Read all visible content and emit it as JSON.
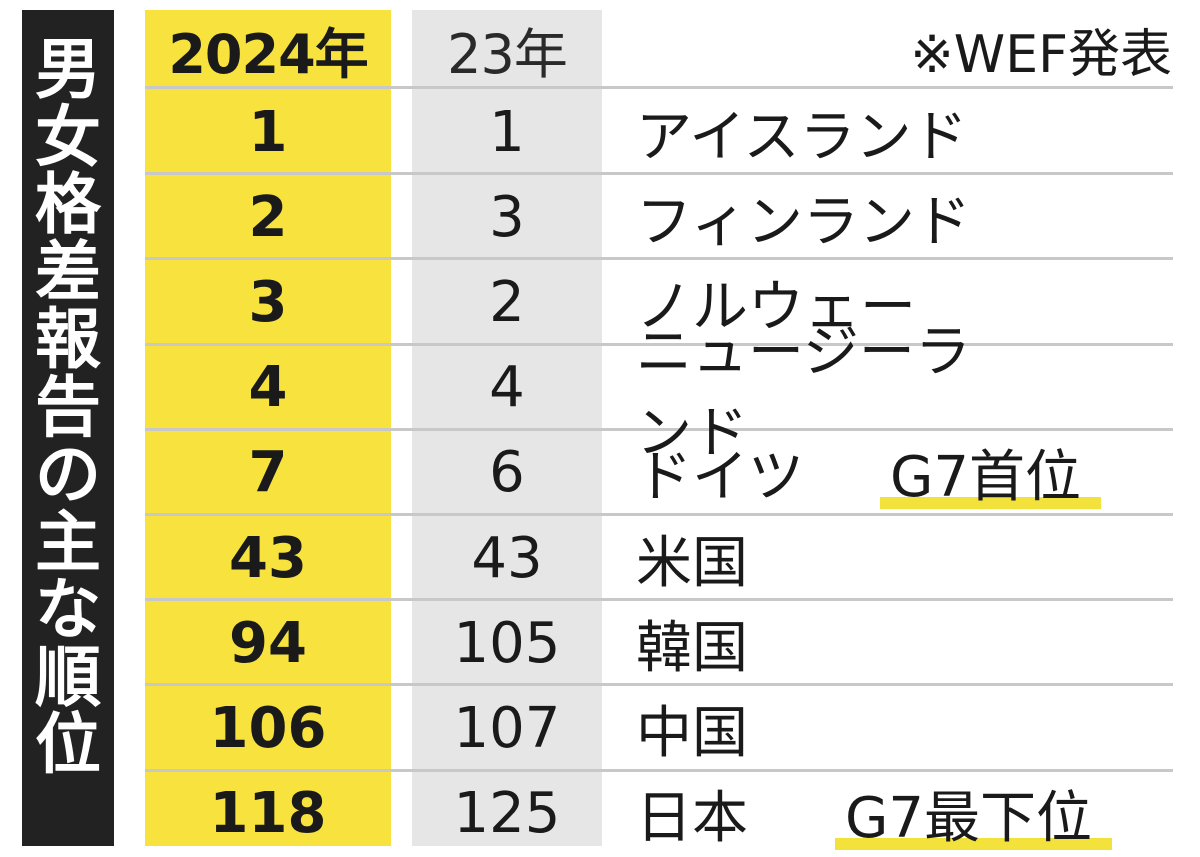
{
  "title_chars": [
    "男",
    "女",
    "格",
    "差",
    "報",
    "告",
    "の",
    "主",
    "な",
    "順",
    "位"
  ],
  "headers": {
    "year_2024": "2024年",
    "year_23": "23年",
    "source": "※WEF発表"
  },
  "colors": {
    "title_bg": "#222222",
    "col_2024_bg": "#f7e23e",
    "col_23_bg": "#e6e6e6",
    "highlight": "#f3e13c",
    "row_line": "#c8c8c8"
  },
  "rows": [
    {
      "rank_2024": "1",
      "rank_23": "1",
      "country": "アイスランド",
      "note": ""
    },
    {
      "rank_2024": "2",
      "rank_23": "3",
      "country": "フィンランド",
      "note": ""
    },
    {
      "rank_2024": "3",
      "rank_23": "2",
      "country": "ノルウェー",
      "note": ""
    },
    {
      "rank_2024": "4",
      "rank_23": "4",
      "country": "ニュージーランド",
      "note": ""
    },
    {
      "rank_2024": "7",
      "rank_23": "6",
      "country": "ドイツ",
      "note": "G7首位"
    },
    {
      "rank_2024": "43",
      "rank_23": "43",
      "country": "米国",
      "note": ""
    },
    {
      "rank_2024": "94",
      "rank_23": "105",
      "country": "韓国",
      "note": ""
    },
    {
      "rank_2024": "106",
      "rank_23": "107",
      "country": "中国",
      "note": ""
    },
    {
      "rank_2024": "118",
      "rank_23": "125",
      "country": "日本",
      "note": "G7最下位"
    }
  ],
  "chart_data": {
    "type": "table",
    "title": "男女格差報告の主な順位",
    "columns": [
      "2024年",
      "23年",
      ""
    ],
    "source_note": "※WEF発表",
    "rows": [
      [
        "1",
        "1",
        "アイスランド"
      ],
      [
        "2",
        "3",
        "フィンランド"
      ],
      [
        "3",
        "2",
        "ノルウェー"
      ],
      [
        "4",
        "4",
        "ニュージーランド"
      ],
      [
        "7",
        "6",
        "ドイツ G7首位"
      ],
      [
        "43",
        "43",
        "米国"
      ],
      [
        "94",
        "105",
        "韓国"
      ],
      [
        "106",
        "107",
        "中国"
      ],
      [
        "118",
        "125",
        "日本 G7最下位"
      ]
    ]
  }
}
